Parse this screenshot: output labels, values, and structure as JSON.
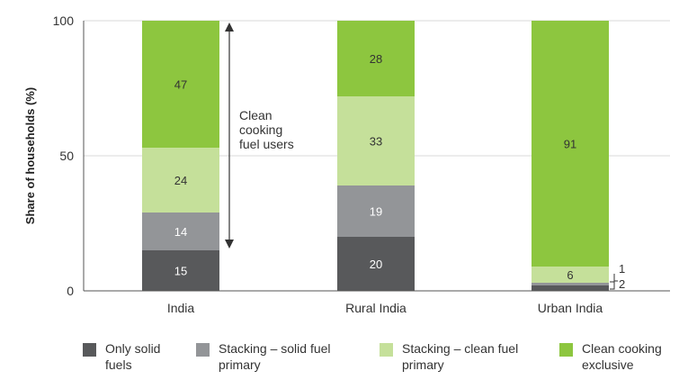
{
  "chart_data": {
    "type": "bar",
    "stacked": true,
    "ylabel": "Share of households (%)",
    "xlabel": "",
    "ylim": [
      0,
      100
    ],
    "yticks": [
      0,
      50,
      100
    ],
    "grid": true,
    "categories": [
      "India",
      "Rural India",
      "Urban India"
    ],
    "series": [
      {
        "name": "Only solid fuels",
        "color": "#58595b",
        "values": [
          15,
          20,
          2
        ],
        "labels": [
          "15",
          "20",
          ""
        ]
      },
      {
        "name": "Stacking – solid fuel primary",
        "color": "#939598",
        "values": [
          14,
          19,
          1
        ],
        "labels": [
          "14",
          "19",
          ""
        ]
      },
      {
        "name": "Stacking – clean fuel primary",
        "color": "#c5e09a",
        "values": [
          24,
          33,
          6
        ],
        "labels": [
          "24",
          "33",
          "6"
        ]
      },
      {
        "name": "Clean cooking exclusive",
        "color": "#8dc63f",
        "values": [
          47,
          28,
          91
        ],
        "labels": [
          "47",
          "28",
          "91"
        ]
      }
    ],
    "annotations": {
      "clean_users_text": "Clean\ncooking\nfuel users",
      "urban_small_labels": [
        "1",
        "2"
      ]
    },
    "legend": {
      "placement": "bottom",
      "items": [
        {
          "label": "Only solid\nfuels",
          "color": "#58595b"
        },
        {
          "label": "Stacking –  solid fuel\nprimary",
          "color": "#939598"
        },
        {
          "label": "Stacking – clean fuel\nprimary",
          "color": "#c5e09a"
        },
        {
          "label": "Clean cooking\nexclusive",
          "color": "#8dc63f"
        }
      ]
    }
  }
}
